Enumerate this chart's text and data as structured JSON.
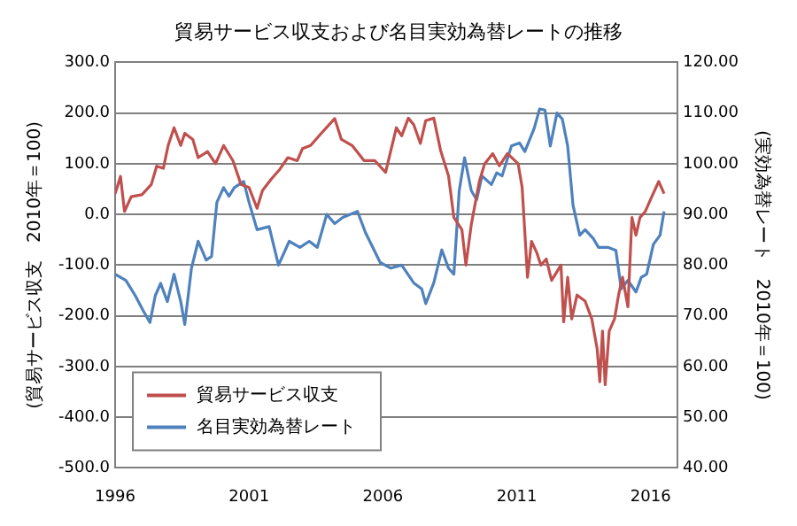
{
  "chart_data": {
    "type": "line",
    "title": "貿易サービス収支および名目実効為替レートの推移",
    "ylabel": "(貿易サービス収支　2010年＝100)",
    "y2label": "(実効為替レート　2010年＝100)",
    "xlim": [
      1996,
      2017
    ],
    "xticks": [
      1996,
      2001,
      2006,
      2011,
      2016
    ],
    "ylim": [
      -500,
      300
    ],
    "yticks": [
      {
        "value": -500,
        "label": "-500.0"
      },
      {
        "value": -400,
        "label": "-400.0"
      },
      {
        "value": -300,
        "label": "-300.0"
      },
      {
        "value": -200,
        "label": "-200.0"
      },
      {
        "value": -100,
        "label": "-100.0"
      },
      {
        "value": 0,
        "label": "0.0"
      },
      {
        "value": 100,
        "label": "100.0"
      },
      {
        "value": 200,
        "label": "200.0"
      },
      {
        "value": 300,
        "label": "300.0"
      }
    ],
    "y2lim": [
      40,
      120
    ],
    "y2ticks": [
      {
        "value": 40,
        "label": "40.00"
      },
      {
        "value": 50,
        "label": "50.00"
      },
      {
        "value": 60,
        "label": "60.00"
      },
      {
        "value": 70,
        "label": "70.00"
      },
      {
        "value": 80,
        "label": "80.00"
      },
      {
        "value": 90,
        "label": "90.00"
      },
      {
        "value": 100,
        "label": "100.00"
      },
      {
        "value": 110,
        "label": "110.00"
      },
      {
        "value": 120,
        "label": "120.00"
      }
    ],
    "grid": "y",
    "legend": "bottom left",
    "marker": "none",
    "line_style": "solid",
    "series": [
      {
        "name": "貿易サービス収支",
        "color": "#c0504d",
        "x": [
          1996.0,
          1996.2,
          1996.35,
          1996.6,
          1997.0,
          1997.35,
          1997.55,
          1997.8,
          1997.98,
          1998.2,
          1998.45,
          1998.6,
          1998.9,
          1999.1,
          1999.45,
          1999.75,
          2000.05,
          2000.4,
          2000.7,
          2001.0,
          2001.3,
          2001.5,
          2001.85,
          2002.15,
          2002.45,
          2002.8,
          2003.0,
          2003.3,
          2003.7,
          2004.2,
          2004.45,
          2004.85,
          2005.3,
          2005.7,
          2006.1,
          2006.5,
          2006.7,
          2006.95,
          2007.15,
          2007.4,
          2007.6,
          2007.9,
          2008.15,
          2008.45,
          2008.65,
          2008.95,
          2009.1,
          2009.3,
          2009.6,
          2009.8,
          2010.1,
          2010.35,
          2010.65,
          2011.05,
          2011.2,
          2011.4,
          2011.55,
          2011.75,
          2011.9,
          2012.1,
          2012.3,
          2012.65,
          2012.75,
          2012.9,
          2013.05,
          2013.25,
          2013.55,
          2013.8,
          2014.0,
          2014.1,
          2014.2,
          2014.3,
          2014.45,
          2014.65,
          2014.8,
          2014.95,
          2015.15,
          2015.3,
          2015.45,
          2015.6,
          2015.8,
          2016.0,
          2016.3,
          2016.5
        ],
        "values": [
          41,
          75,
          6,
          35,
          39,
          59,
          95,
          91,
          136,
          171,
          136,
          160,
          148,
          112,
          124,
          100,
          136,
          106,
          59,
          53,
          12,
          47,
          71,
          89,
          112,
          106,
          130,
          136,
          160,
          189,
          148,
          136,
          106,
          106,
          83,
          171,
          155,
          190,
          177,
          140,
          185,
          190,
          127,
          76,
          -6,
          -30,
          -100,
          -20,
          65,
          100,
          120,
          96,
          120,
          100,
          53,
          -124,
          -53,
          -76,
          -100,
          -88,
          -130,
          -100,
          -212,
          -124,
          -206,
          -159,
          -171,
          -206,
          -265,
          -330,
          -230,
          -336,
          -230,
          -206,
          -159,
          -124,
          -182,
          -6,
          -41,
          -6,
          6,
          30,
          65,
          41
        ]
      },
      {
        "name": "名目実効為替レート",
        "color": "#4f81bd",
        "axis": "y2",
        "x": [
          1996.0,
          1996.4,
          1996.75,
          1997.05,
          1997.3,
          1997.5,
          1997.7,
          1997.95,
          1998.2,
          1998.45,
          1998.6,
          1998.85,
          1999.1,
          1999.4,
          1999.6,
          1999.8,
          2000.05,
          2000.25,
          2000.45,
          2000.8,
          2001.0,
          2001.3,
          2001.75,
          2002.1,
          2002.5,
          2002.9,
          2003.25,
          2003.55,
          2003.9,
          2004.2,
          2004.5,
          2005.05,
          2005.35,
          2005.9,
          2006.3,
          2006.7,
          2007.15,
          2007.45,
          2007.6,
          2007.9,
          2008.2,
          2008.45,
          2008.65,
          2008.85,
          2009.05,
          2009.3,
          2009.5,
          2009.7,
          2010.05,
          2010.25,
          2010.45,
          2010.8,
          2011.1,
          2011.3,
          2011.65,
          2011.85,
          2012.05,
          2012.25,
          2012.5,
          2012.7,
          2012.9,
          2013.1,
          2013.35,
          2013.55,
          2013.85,
          2014.05,
          2014.4,
          2014.7,
          2014.9,
          2015.15,
          2015.45,
          2015.65,
          2015.85,
          2016.1,
          2016.35,
          2016.5
        ],
        "values": [
          78.2,
          77,
          74,
          71,
          68.7,
          74,
          76.4,
          72.8,
          78.2,
          72.8,
          68.3,
          79.4,
          84.7,
          81,
          81.7,
          92.4,
          95.3,
          93.6,
          95.3,
          96.5,
          92.4,
          87,
          87.6,
          80,
          84.7,
          83.5,
          84.7,
          83.5,
          90,
          88.2,
          89.4,
          90.6,
          86.4,
          80.5,
          79.4,
          80,
          76.5,
          75.3,
          72.4,
          76.5,
          83,
          79.4,
          78.2,
          94.7,
          101.2,
          94.7,
          92.9,
          97.6,
          95.9,
          98.2,
          97.6,
          103.5,
          104.1,
          102.4,
          107,
          110.8,
          110.6,
          103.5,
          110,
          108.8,
          103.5,
          91.8,
          85.9,
          87,
          85.3,
          83.5,
          83.5,
          82.9,
          75.3,
          77,
          74.7,
          77.6,
          78.2,
          84.1,
          85.9,
          90.6
        ]
      }
    ]
  }
}
